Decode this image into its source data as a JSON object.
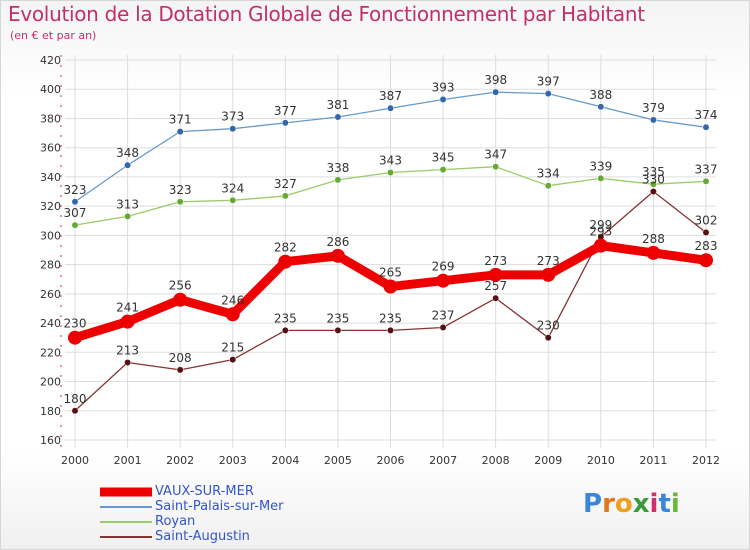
{
  "title": "Evolution de la Dotation Globale de Fonctionnement par Habitant",
  "subtitle": "(en € et par an)",
  "logo": {
    "letters": [
      "P",
      "r",
      "o",
      "x",
      "i",
      "t",
      "i"
    ],
    "colors": [
      "#3a86d8",
      "#e2761f",
      "#f0a020",
      "#3a9a3a",
      "#d0306a",
      "#3a86d8",
      "#6ab83a"
    ]
  },
  "chart_data": {
    "type": "line",
    "title": "Evolution de la Dotation Globale de Fonctionnement par Habitant",
    "ylabel": "(en € et par an)",
    "xlabel": "",
    "categories": [
      "2000",
      "2001",
      "2002",
      "2003",
      "2004",
      "2005",
      "2006",
      "2007",
      "2008",
      "2009",
      "2010",
      "2011",
      "2012"
    ],
    "ylim": [
      160,
      420
    ],
    "yticks": [
      160,
      180,
      200,
      220,
      240,
      260,
      280,
      300,
      320,
      340,
      360,
      380,
      400,
      420
    ],
    "grid": true,
    "legend_position": "bottom-left",
    "series": [
      {
        "name": "VAUX-SUR-MER",
        "color": "#ee0000",
        "marker": "#ee0000",
        "emphasis": true,
        "values": [
          230,
          241,
          256,
          246,
          282,
          286,
          265,
          269,
          273,
          273,
          293,
          288,
          283
        ]
      },
      {
        "name": "Saint-Palais-sur-Mer",
        "color": "#6699cc",
        "marker": "#3366aa",
        "values": [
          323,
          348,
          371,
          373,
          377,
          381,
          387,
          393,
          398,
          397,
          388,
          379,
          374
        ]
      },
      {
        "name": "Royan",
        "color": "#99cc66",
        "marker": "#66aa33",
        "values": [
          307,
          313,
          323,
          324,
          327,
          338,
          343,
          345,
          347,
          334,
          339,
          335,
          337
        ]
      },
      {
        "name": "Saint-Augustin",
        "color": "#883333",
        "marker": "#551111",
        "values": [
          180,
          213,
          208,
          215,
          235,
          235,
          235,
          237,
          257,
          230,
          299,
          330,
          302
        ]
      }
    ]
  }
}
